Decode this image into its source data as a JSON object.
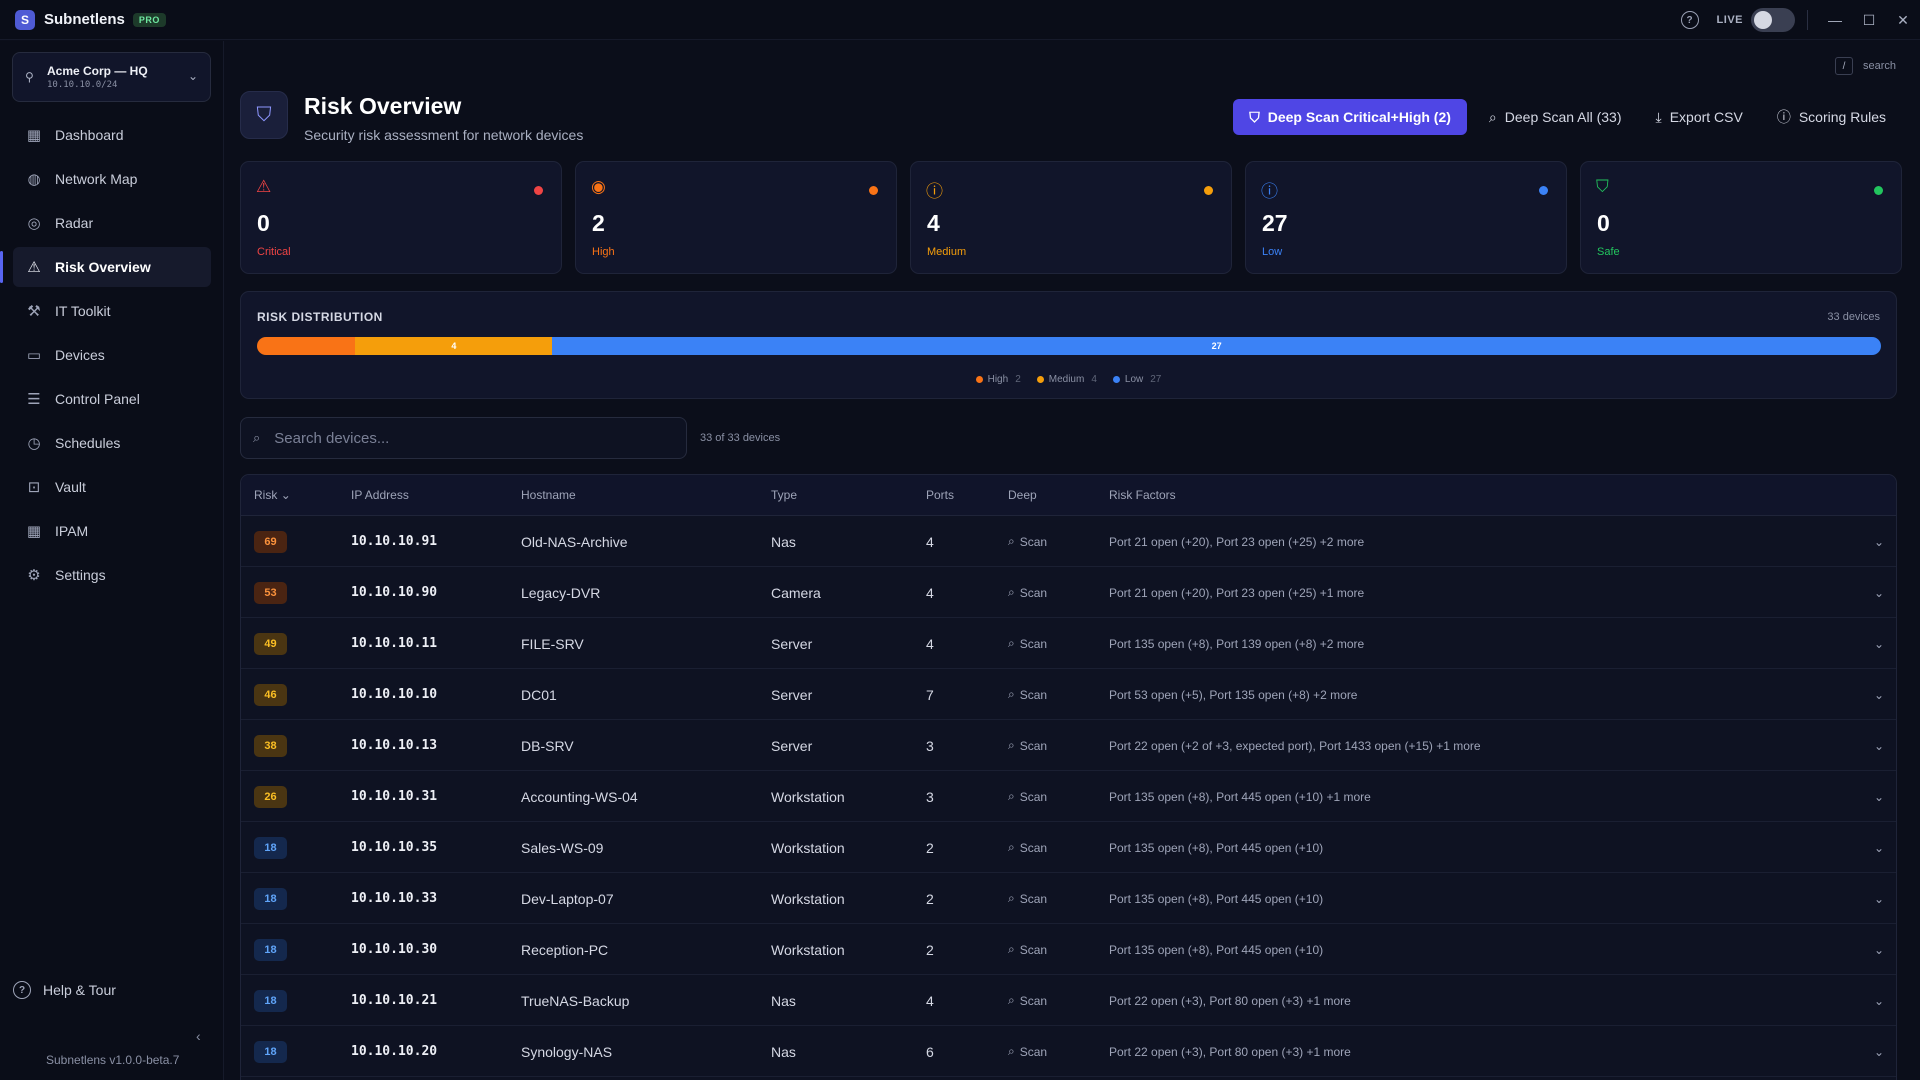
{
  "app": {
    "title": "Subnetlens",
    "badge": "PRO",
    "live_label": "LIVE",
    "version": "Subnetlens v1.0.0-beta.7"
  },
  "titlebar": {
    "help_icon": "?",
    "minimize": "—",
    "maximize": "☐",
    "close": "✕"
  },
  "site": {
    "name": "Acme Corp — HQ",
    "subnet": "10.10.10.0/24"
  },
  "nav": [
    {
      "label": "Dashboard",
      "icon": "grid-icon",
      "glyph": "▦",
      "active": false
    },
    {
      "label": "Network Map",
      "icon": "globe-icon",
      "glyph": "◍",
      "active": false
    },
    {
      "label": "Radar",
      "icon": "radar-icon",
      "glyph": "◎",
      "active": false
    },
    {
      "label": "Risk Overview",
      "icon": "warning-icon",
      "glyph": "⚠",
      "active": true
    },
    {
      "label": "IT Toolkit",
      "icon": "toolkit-icon",
      "glyph": "⚒",
      "active": false
    },
    {
      "label": "Devices",
      "icon": "monitor-icon",
      "glyph": "▭",
      "active": false
    },
    {
      "label": "Control Panel",
      "icon": "sliders-icon",
      "glyph": "☰",
      "active": false
    },
    {
      "label": "Schedules",
      "icon": "clock-icon",
      "glyph": "◷",
      "active": false
    },
    {
      "label": "Vault",
      "icon": "lock-icon",
      "glyph": "⊡",
      "active": false
    },
    {
      "label": "IPAM",
      "icon": "grid-icon",
      "glyph": "▦",
      "active": false
    },
    {
      "label": "Settings",
      "icon": "gear-icon",
      "glyph": "⚙",
      "active": false
    }
  ],
  "help_tour": "Help & Tour",
  "search_hint": {
    "key": "/",
    "label": "search"
  },
  "page": {
    "title": "Risk Overview",
    "subtitle": "Security risk assessment for network devices"
  },
  "actions": {
    "deep_scan_critical": "Deep Scan Critical+High (2)",
    "deep_scan_all": "Deep Scan All (33)",
    "export_csv": "Export CSV",
    "scoring_rules": "Scoring Rules"
  },
  "stats": [
    {
      "value": "0",
      "label": "Critical",
      "color": "#ef4444",
      "icon": "warning-icon",
      "glyph": "⚠"
    },
    {
      "value": "2",
      "label": "High",
      "color": "#f97316",
      "icon": "flame-icon",
      "glyph": "◉"
    },
    {
      "value": "4",
      "label": "Medium",
      "color": "#f59e0b",
      "icon": "alert-circle-icon",
      "glyph": "ⓘ"
    },
    {
      "value": "27",
      "label": "Low",
      "color": "#3b82f6",
      "icon": "info-icon",
      "glyph": "ⓘ"
    },
    {
      "value": "0",
      "label": "Safe",
      "color": "#22c55e",
      "icon": "shield-check-icon",
      "glyph": "⛉"
    }
  ],
  "distribution": {
    "title": "RISK DISTRIBUTION",
    "total_label": "33 devices",
    "total": 33,
    "segments": [
      {
        "name": "High",
        "value": 2,
        "color": "#f97316",
        "label": ""
      },
      {
        "name": "Medium",
        "value": 4,
        "color": "#f59e0b",
        "label": "4"
      },
      {
        "name": "Low",
        "value": 27,
        "color": "#3b82f6",
        "label": "27"
      }
    ]
  },
  "search": {
    "placeholder": "Search devices...",
    "result_count": "33 of 33 devices"
  },
  "table": {
    "headers": {
      "risk": "Risk",
      "ip": "IP Address",
      "hostname": "Hostname",
      "type": "Type",
      "ports": "Ports",
      "deep": "Deep",
      "factors": "Risk Factors"
    },
    "scan_label": "Scan",
    "rows": [
      {
        "risk": "69",
        "level": "high",
        "ip": "10.10.10.91",
        "hostname": "Old-NAS-Archive",
        "type": "Nas",
        "ports": "4",
        "factors": "Port 21 open (+20), Port 23 open (+25) +2 more"
      },
      {
        "risk": "53",
        "level": "high",
        "ip": "10.10.10.90",
        "hostname": "Legacy-DVR",
        "type": "Camera",
        "ports": "4",
        "factors": "Port 21 open (+20), Port 23 open (+25) +1 more"
      },
      {
        "risk": "49",
        "level": "medium",
        "ip": "10.10.10.11",
        "hostname": "FILE-SRV",
        "type": "Server",
        "ports": "4",
        "factors": "Port 135 open (+8), Port 139 open (+8) +2 more"
      },
      {
        "risk": "46",
        "level": "medium",
        "ip": "10.10.10.10",
        "hostname": "DC01",
        "type": "Server",
        "ports": "7",
        "factors": "Port 53 open (+5), Port 135 open (+8) +2 more"
      },
      {
        "risk": "38",
        "level": "medium",
        "ip": "10.10.10.13",
        "hostname": "DB-SRV",
        "type": "Server",
        "ports": "3",
        "factors": "Port 22 open (+2 of +3, expected port), Port 1433 open (+15) +1 more"
      },
      {
        "risk": "26",
        "level": "medium",
        "ip": "10.10.10.31",
        "hostname": "Accounting-WS-04",
        "type": "Workstation",
        "ports": "3",
        "factors": "Port 135 open (+8), Port 445 open (+10) +1 more"
      },
      {
        "risk": "18",
        "level": "low",
        "ip": "10.10.10.35",
        "hostname": "Sales-WS-09",
        "type": "Workstation",
        "ports": "2",
        "factors": "Port 135 open (+8), Port 445 open (+10)"
      },
      {
        "risk": "18",
        "level": "low",
        "ip": "10.10.10.33",
        "hostname": "Dev-Laptop-07",
        "type": "Workstation",
        "ports": "2",
        "factors": "Port 135 open (+8), Port 445 open (+10)"
      },
      {
        "risk": "18",
        "level": "low",
        "ip": "10.10.10.30",
        "hostname": "Reception-PC",
        "type": "Workstation",
        "ports": "2",
        "factors": "Port 135 open (+8), Port 445 open (+10)"
      },
      {
        "risk": "18",
        "level": "low",
        "ip": "10.10.10.21",
        "hostname": "TrueNAS-Backup",
        "type": "Nas",
        "ports": "4",
        "factors": "Port 22 open (+3), Port 80 open (+3) +1 more"
      },
      {
        "risk": "18",
        "level": "low",
        "ip": "10.10.10.20",
        "hostname": "Synology-NAS",
        "type": "Nas",
        "ports": "6",
        "factors": "Port 22 open (+3), Port 80 open (+3) +1 more"
      }
    ]
  },
  "colors": {
    "accent": "#4f46e5",
    "badge_high_bg": "#4a2412",
    "badge_high_fg": "#fb923c",
    "badge_medium_bg": "#4a3512",
    "badge_medium_fg": "#fbbf24",
    "badge_low_bg": "#14284d",
    "badge_low_fg": "#60a5fa"
  }
}
